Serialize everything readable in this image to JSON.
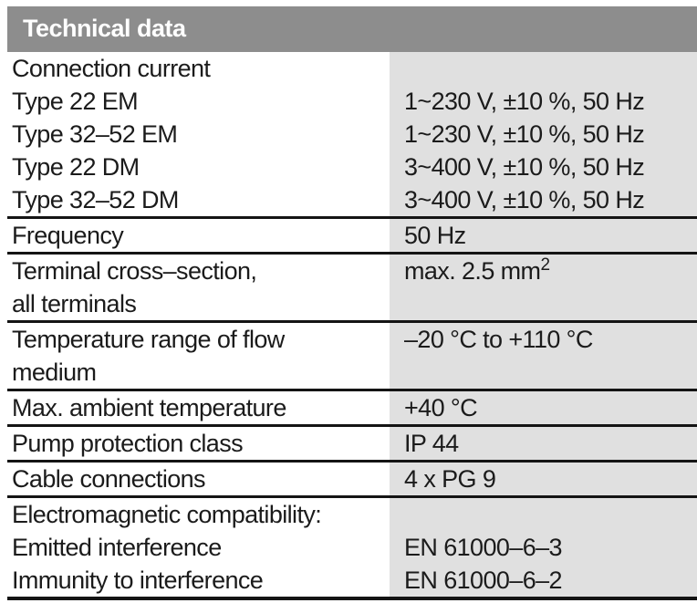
{
  "header": {
    "title": "Technical data"
  },
  "colors": {
    "header_bg": "#8d8d8d",
    "header_text": "#ffffff",
    "value_column_bg": "#e0e0e0",
    "body_text": "#1b1b1b",
    "row_border": "#141414"
  },
  "table": {
    "sections": [
      {
        "lines": [
          {
            "label": "Connection current",
            "value": ""
          },
          {
            "label": "Type 22 EM",
            "value": "1~230 V, ±10 %, 50 Hz"
          },
          {
            "label": "Type 32–52 EM",
            "value": "1~230 V, ±10 %, 50 Hz"
          },
          {
            "label": "Type 22 DM",
            "value": "3~400 V, ±10 %, 50 Hz"
          },
          {
            "label": "Type 32–52 DM",
            "value": "3~400 V, ±10 %, 50 Hz"
          }
        ]
      },
      {
        "lines": [
          {
            "label": "Frequency",
            "value": "50 Hz"
          }
        ]
      },
      {
        "lines": [
          {
            "label": "Terminal cross–section,",
            "value": "max. 2.5 mm",
            "value_sup": "2"
          },
          {
            "label": "all terminals",
            "value": ""
          }
        ]
      },
      {
        "lines": [
          {
            "label": "Temperature range of flow",
            "value": "–20 °C to +110 °C"
          },
          {
            "label": "medium",
            "value": ""
          }
        ]
      },
      {
        "lines": [
          {
            "label": "Max. ambient temperature",
            "value": "+40 °C"
          }
        ]
      },
      {
        "lines": [
          {
            "label": "Pump protection class",
            "value": "IP 44"
          }
        ]
      },
      {
        "lines": [
          {
            "label": "Cable connections",
            "value": "4 x PG 9"
          }
        ]
      },
      {
        "lines": [
          {
            "label": "Electromagnetic compatibility:",
            "value": ""
          },
          {
            "label": "Emitted interference",
            "value": "EN 61000–6–3"
          },
          {
            "label": "Immunity to interference",
            "value": "EN 61000–6–2"
          }
        ]
      }
    ]
  }
}
